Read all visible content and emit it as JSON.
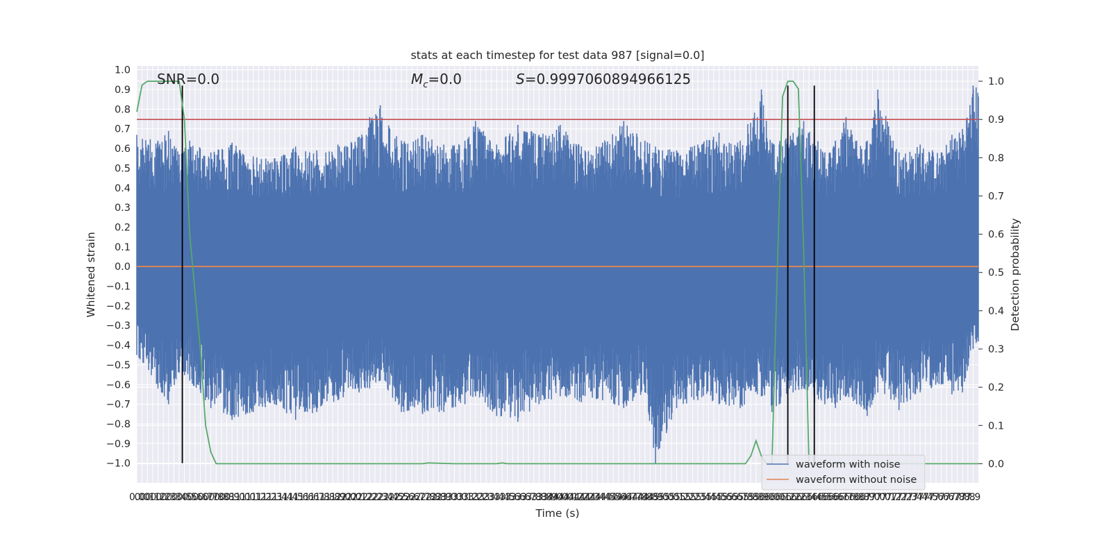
{
  "chart_data": {
    "type": "line",
    "title": "stats at each timestep for test data 987 [signal=0.0]",
    "xlabel": "Time (s)",
    "ylabel": "Whitened strain",
    "ylabel_right": "Detection probability",
    "xlim": [
      0.0,
      7.95
    ],
    "ylim": [
      -1.1,
      1.02
    ],
    "ylim_right": [
      -0.05,
      1.04
    ],
    "x_ticks": [
      0.0,
      0.05,
      0.1,
      0.15,
      0.2,
      0.25,
      0.3,
      0.35,
      0.4,
      0.45,
      0.5,
      0.55,
      0.6,
      0.65,
      0.7,
      0.75,
      0.8,
      0.85,
      0.9,
      0.95,
      1.0,
      1.05,
      1.1,
      1.15,
      1.2,
      1.25,
      1.3,
      1.35,
      1.4,
      1.45,
      1.5,
      1.55,
      1.6,
      1.65,
      1.7,
      1.75,
      1.8,
      1.85,
      1.9,
      1.95,
      2.0,
      2.05,
      2.1,
      2.15,
      2.2,
      2.25,
      2.3,
      2.35,
      2.4,
      2.45,
      2.5,
      2.55,
      2.6,
      2.65,
      2.7,
      2.75,
      2.8,
      2.85,
      2.9,
      2.95,
      3.0,
      3.05,
      3.1,
      3.15,
      3.2,
      3.25,
      3.3,
      3.35,
      3.4,
      3.45,
      3.5,
      3.55,
      3.6,
      3.65,
      3.7,
      3.75,
      3.8,
      3.85,
      3.9,
      3.95,
      4.0,
      4.05,
      4.1,
      4.15,
      4.2,
      4.25,
      4.3,
      4.35,
      4.4,
      4.45,
      4.5,
      4.55,
      4.6,
      4.65,
      4.7,
      4.75,
      4.8,
      4.85,
      4.9,
      4.95,
      5.0,
      5.05,
      5.1,
      5.15,
      5.2,
      5.25,
      5.3,
      5.35,
      5.4,
      5.45,
      5.5,
      5.55,
      5.6,
      5.65,
      5.7,
      5.75,
      5.8,
      5.85,
      5.9,
      5.95,
      6.0,
      6.05,
      6.1,
      6.15,
      6.2,
      6.25,
      6.3,
      6.35,
      6.4,
      6.45,
      6.5,
      6.55,
      6.6,
      6.65,
      6.7,
      6.75,
      6.8,
      6.85,
      6.9,
      6.95,
      7.0,
      7.05,
      7.1,
      7.15,
      7.2,
      7.25,
      7.3,
      7.35,
      7.4,
      7.45,
      7.5,
      7.55,
      7.6,
      7.65,
      7.7,
      7.75,
      7.8,
      7.85,
      7.9
    ],
    "x_tick_labels": [
      "0.0",
      "0.0",
      "0.1",
      "0.1",
      "0.2",
      "0.2",
      "0.3",
      "0.3",
      "0.4",
      "0.5",
      "0.5",
      "0.6",
      "0.6",
      "0.7",
      "0.7",
      "0.8",
      "0.8",
      "0.8",
      "0.9",
      "1.0",
      "1.0",
      "1.0",
      "1.1",
      "1.2",
      "1.2",
      "1.2",
      "1.3",
      "1.4",
      "1.4",
      "1.4",
      "1.5",
      "1.6",
      "1.6",
      "1.6",
      "1.7",
      "1.8",
      "1.8",
      "1.8",
      "1.9",
      "2.0",
      "2.0",
      "2.0",
      "2.1",
      "2.2",
      "2.2",
      "2.2",
      "2.3",
      "2.4",
      "2.4",
      "2.5",
      "2.5",
      "2.6",
      "2.6",
      "2.7",
      "2.7",
      "2.8",
      "2.8",
      "2.8",
      "2.9",
      "3.0",
      "3.0",
      "3.0",
      "3.1",
      "3.2",
      "3.2",
      "3.2",
      "3.3",
      "3.4",
      "3.4",
      "3.4",
      "3.5",
      "3.6",
      "3.6",
      "3.6",
      "3.7",
      "3.8",
      "3.8",
      "3.8",
      "3.9",
      "4.0",
      "4.0",
      "4.0",
      "4.1",
      "4.2",
      "4.2",
      "4.2",
      "4.3",
      "4.4",
      "4.4",
      "4.5",
      "4.5",
      "4.6",
      "4.6",
      "4.7",
      "4.7",
      "4.8",
      "4.8",
      "4.8",
      "4.9",
      "5.0",
      "5.0",
      "5.0",
      "5.1",
      "5.2",
      "5.2",
      "5.2",
      "5.3",
      "5.4",
      "5.4",
      "5.4",
      "5.5",
      "5.6",
      "5.6",
      "5.6",
      "5.7",
      "5.8",
      "5.8",
      "5.8",
      "5.9",
      "6.0",
      "6.0",
      "6.0",
      "6.1",
      "6.2",
      "6.2",
      "6.2",
      "6.3",
      "6.4",
      "6.4",
      "6.5",
      "6.5",
      "6.6",
      "6.6",
      "6.7",
      "6.7",
      "6.8",
      "6.8",
      "6.8",
      "6.9",
      "7.0",
      "7.0",
      "7.0",
      "7.1",
      "7.2",
      "7.2",
      "7.2",
      "7.3",
      "7.4",
      "7.4",
      "7.4",
      "7.5",
      "7.6",
      "7.6",
      "7.6",
      "7.7",
      "7.8",
      "7.8",
      "7.8",
      "7.9"
    ],
    "y_ticks_left": [
      1.0,
      0.9,
      0.8,
      0.7,
      0.6,
      0.5,
      0.4,
      0.3,
      0.2,
      0.1,
      0.0,
      -0.1,
      -0.2,
      -0.3,
      -0.4,
      -0.5,
      -0.6,
      -0.7,
      -0.8,
      -0.9,
      -1.0
    ],
    "y_tick_labels_left": [
      "1.0",
      "0.9",
      "0.8",
      "0.7",
      "0.6",
      "0.5",
      "0.4",
      "0.3",
      "0.2",
      "0.1",
      "0.0",
      "−0.1",
      "−0.2",
      "−0.3",
      "−0.4",
      "−0.5",
      "−0.6",
      "−0.7",
      "−0.8",
      "−0.9",
      "−1.0"
    ],
    "y_ticks_right": [
      1.0,
      0.9,
      0.8,
      0.7,
      0.6,
      0.5,
      0.4,
      0.3,
      0.2,
      0.1,
      0.0
    ],
    "y_tick_labels_right": [
      "1.0",
      "0.9",
      "0.8",
      "0.7",
      "0.6",
      "0.5",
      "0.4",
      "0.3",
      "0.2",
      "0.1",
      "0.0"
    ],
    "grid": true,
    "legend_position": "lower-right",
    "annotations": {
      "snr": "SNR=0.0",
      "mc_symbol": "M",
      "mc_sub": "c",
      "mc_value": "=0.0",
      "s_symbol": "S",
      "s_value": "=0.9997060894966125"
    },
    "series": [
      {
        "name": "waveform with noise",
        "color": "#4c72b0",
        "axis": "left",
        "sampling": "dense noisy trace; envelope approx (x, upper, lower)",
        "envelope": [
          [
            0.0,
            0.67,
            -0.45
          ],
          [
            0.2,
            0.64,
            -0.62
          ],
          [
            0.3,
            0.69,
            -0.7
          ],
          [
            0.4,
            0.57,
            -0.54
          ],
          [
            0.5,
            0.64,
            -0.58
          ],
          [
            0.7,
            0.58,
            -0.72
          ],
          [
            0.9,
            0.63,
            -0.78
          ],
          [
            1.1,
            0.56,
            -0.74
          ],
          [
            1.3,
            0.55,
            -0.7
          ],
          [
            1.5,
            0.61,
            -0.78
          ],
          [
            1.7,
            0.59,
            -0.74
          ],
          [
            1.9,
            0.62,
            -0.68
          ],
          [
            2.1,
            0.66,
            -0.64
          ],
          [
            2.2,
            0.76,
            -0.62
          ],
          [
            2.3,
            0.82,
            -0.58
          ],
          [
            2.5,
            0.64,
            -0.74
          ],
          [
            2.7,
            0.67,
            -0.75
          ],
          [
            2.9,
            0.62,
            -0.74
          ],
          [
            3.1,
            0.64,
            -0.7
          ],
          [
            3.2,
            0.74,
            -0.66
          ],
          [
            3.4,
            0.62,
            -0.76
          ],
          [
            3.6,
            0.72,
            -0.79
          ],
          [
            3.8,
            0.67,
            -0.7
          ],
          [
            4.0,
            0.72,
            -0.66
          ],
          [
            4.2,
            0.61,
            -0.69
          ],
          [
            4.4,
            0.63,
            -0.68
          ],
          [
            4.6,
            0.74,
            -0.72
          ],
          [
            4.8,
            0.64,
            -0.64
          ],
          [
            4.9,
            0.61,
            -1.0
          ],
          [
            5.1,
            0.59,
            -0.72
          ],
          [
            5.3,
            0.62,
            -0.68
          ],
          [
            5.5,
            0.68,
            -0.7
          ],
          [
            5.7,
            0.64,
            -0.72
          ],
          [
            5.9,
            0.9,
            -0.66
          ],
          [
            6.0,
            0.63,
            -0.74
          ],
          [
            6.2,
            0.68,
            -0.64
          ],
          [
            6.3,
            0.74,
            -0.62
          ],
          [
            6.4,
            0.68,
            -0.7
          ],
          [
            6.5,
            0.58,
            -0.7
          ],
          [
            6.6,
            0.64,
            -0.72
          ],
          [
            6.7,
            0.76,
            -0.66
          ],
          [
            6.8,
            0.64,
            -0.7
          ],
          [
            6.9,
            0.64,
            -0.76
          ],
          [
            7.0,
            0.9,
            -0.64
          ],
          [
            7.2,
            0.58,
            -0.73
          ],
          [
            7.4,
            0.62,
            -0.64
          ],
          [
            7.6,
            0.58,
            -0.6
          ],
          [
            7.7,
            0.67,
            -0.65
          ],
          [
            7.8,
            0.7,
            -0.64
          ],
          [
            7.9,
            0.92,
            -0.42
          ]
        ]
      },
      {
        "name": "waveform without noise",
        "color": "#dd8452",
        "axis": "left",
        "x": [
          0.0,
          7.95
        ],
        "y": [
          0.0,
          0.0
        ]
      },
      {
        "color": "#55a868",
        "axis": "right",
        "x": [
          0.0,
          0.05,
          0.1,
          0.2,
          0.3,
          0.35,
          0.4,
          0.45,
          0.5,
          0.55,
          0.6,
          0.65,
          0.7,
          0.75,
          0.8,
          1.0,
          2.0,
          2.7,
          2.75,
          3.0,
          3.4,
          3.45,
          3.5,
          5.0,
          5.75,
          5.8,
          5.85,
          5.9,
          5.95,
          6.0,
          6.05,
          6.1,
          6.15,
          6.2,
          6.25,
          6.3,
          6.35,
          6.4,
          6.45,
          6.5,
          7.0,
          7.95
        ],
        "y": [
          0.92,
          0.99,
          1.0,
          1.0,
          1.0,
          1.0,
          1.0,
          0.9,
          0.6,
          0.45,
          0.3,
          0.1,
          0.03,
          0.0,
          0.0,
          0.0,
          0.0,
          0.0,
          0.002,
          0.0,
          0.0,
          0.002,
          0.0,
          0.0,
          0.0,
          0.02,
          0.06,
          0.02,
          0.0,
          0.0,
          0.5,
          0.96,
          1.0,
          1.0,
          0.98,
          0.55,
          0.0,
          0.0,
          0.0,
          0.0,
          0.0,
          0.0
        ]
      },
      {
        "color": "#c44e52",
        "axis": "right",
        "x": [
          0.0,
          7.95
        ],
        "y": [
          0.9,
          0.9
        ]
      },
      {
        "color": "#000000",
        "axis": "left",
        "type": "vlines",
        "x": [
          0.43,
          6.15,
          6.4
        ],
        "ymin": -1.0,
        "ymax": 0.92
      }
    ]
  }
}
